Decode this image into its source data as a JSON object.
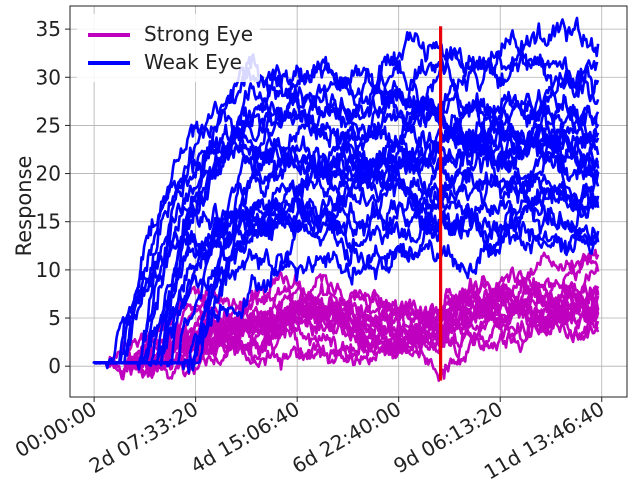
{
  "chart_data": {
    "type": "line",
    "title": "",
    "xlabel": "",
    "ylabel": "Response",
    "ylim": [
      -3.2,
      37.4
    ],
    "yticks": [
      0,
      5,
      10,
      15,
      20,
      25,
      30,
      35
    ],
    "xlim_days": [
      -0.55,
      12.15
    ],
    "xticks": [
      {
        "value_days": 0,
        "label": "00:00:00"
      },
      {
        "value_days": 2.3148,
        "label": "2d 07:33:20"
      },
      {
        "value_days": 4.6296,
        "label": "4d 15:06:40"
      },
      {
        "value_days": 6.9444,
        "label": "6d 22:40:00"
      },
      {
        "value_days": 9.2593,
        "label": "9d 06:13:20"
      },
      {
        "value_days": 11.5741,
        "label": "11d 13:46:40"
      }
    ],
    "grid": true,
    "legend": {
      "position": "top-left"
    },
    "vertical_marker": {
      "x_days": 7.9,
      "y_from": -1.5,
      "y_to": 35.3,
      "color": "#e8000b"
    },
    "series": [
      {
        "name": "Strong Eye",
        "color": "#bf00bf",
        "count": 15,
        "note": "onset around day 0.2-2.2, rises to ~3-9 and stays roughly flat"
      },
      {
        "name": "Weak Eye",
        "color": "#0000ff",
        "count": 22,
        "note": "onset around day 0.1-2.4, rises to plateaus between ~12 and ~33"
      }
    ]
  }
}
